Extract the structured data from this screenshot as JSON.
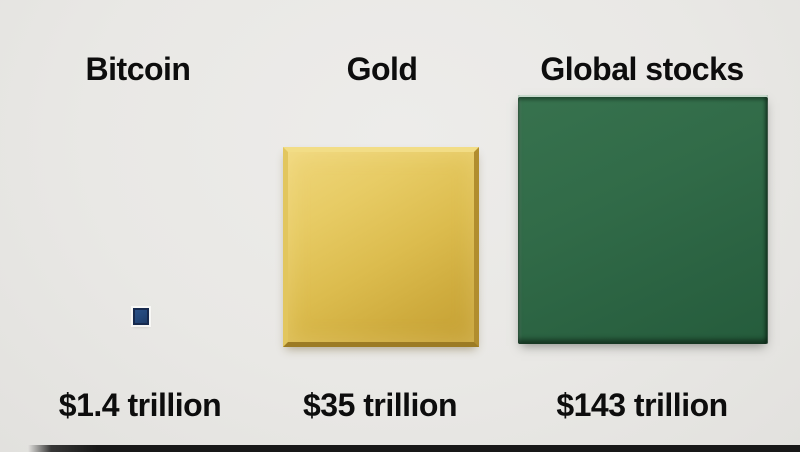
{
  "chart_data": {
    "type": "bar",
    "variant": "proportional-square-area-infographic",
    "title": "",
    "categories": [
      "Bitcoin",
      "Gold",
      "Global stocks"
    ],
    "values": [
      1.4,
      35,
      143
    ],
    "unit": "trillion USD",
    "value_labels": [
      "$1.4 trillion",
      "$35 trillion",
      "$143 trillion"
    ],
    "legend": "none",
    "grid": false,
    "colors": {
      "bitcoin_square": "#1e3f6e",
      "gold_square": "#d9b84a",
      "global_stocks_square": "#2f6a46",
      "text": "#0d0d0d",
      "background": "#e9e8e5",
      "bottom_bar": "#181818"
    }
  },
  "columns": [
    {
      "label": "Bitcoin",
      "value_label": "$1.4 trillion"
    },
    {
      "label": "Gold",
      "value_label": "$35 trillion"
    },
    {
      "label": "Global stocks",
      "value_label": "$143 trillion"
    }
  ]
}
